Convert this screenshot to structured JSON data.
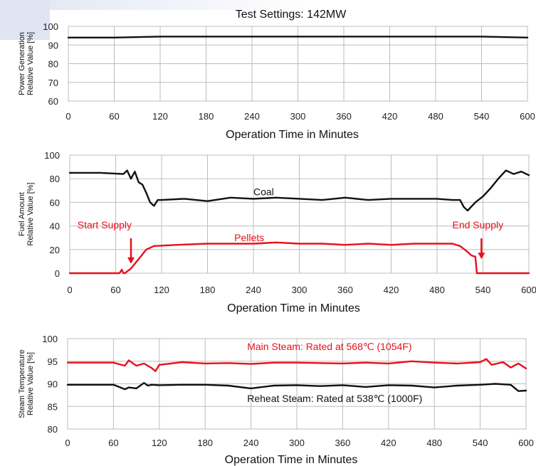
{
  "chart_data": [
    {
      "type": "line",
      "title": "Test Settings: 142MW",
      "xlabel": "Operation Time in Minutes",
      "ylabel": [
        "Power Generation",
        "Relative Value [%]"
      ],
      "xlim": [
        0,
        600
      ],
      "ylim": [
        60,
        100
      ],
      "xticks": [
        0,
        60,
        120,
        180,
        240,
        300,
        360,
        420,
        480,
        540,
        600
      ],
      "yticks": [
        60,
        70,
        80,
        90,
        100
      ],
      "grid": true,
      "series": [
        {
          "color": "#111111",
          "x": [
            0,
            60,
            120,
            180,
            240,
            300,
            360,
            420,
            480,
            540,
            600
          ],
          "y": [
            94,
            94,
            94.5,
            94.5,
            94.5,
            94.5,
            94.5,
            94.5,
            94.5,
            94.5,
            94
          ]
        }
      ],
      "annotations": []
    },
    {
      "type": "line",
      "title": "",
      "xlabel": "Operation Time in Minutes",
      "ylabel": [
        "Fuel Amount",
        "Relative Value [%]"
      ],
      "xlim": [
        0,
        600
      ],
      "ylim": [
        0,
        100
      ],
      "xticks": [
        0,
        60,
        120,
        180,
        240,
        300,
        360,
        420,
        480,
        540,
        600
      ],
      "yticks": [
        0,
        20,
        40,
        60,
        80,
        100
      ],
      "grid": true,
      "series": [
        {
          "color": "#111111",
          "x": [
            0,
            40,
            70,
            75,
            80,
            85,
            90,
            95,
            100,
            105,
            110,
            115,
            120,
            150,
            180,
            210,
            240,
            270,
            300,
            330,
            360,
            390,
            420,
            450,
            480,
            500,
            510,
            515,
            520,
            530,
            540,
            550,
            560,
            570,
            580,
            590,
            600
          ],
          "y": [
            85,
            85,
            84,
            87,
            80,
            86,
            77,
            75,
            68,
            60,
            57,
            62,
            62,
            63,
            61,
            64,
            63,
            64,
            63,
            62,
            64,
            62,
            63,
            63,
            63,
            62,
            62,
            56,
            53,
            60,
            65,
            72,
            80,
            87,
            84,
            86,
            83
          ]
        },
        {
          "color": "#e8101c",
          "x": [
            0,
            65,
            68,
            70,
            72,
            80,
            90,
            100,
            110,
            140,
            180,
            210,
            240,
            270,
            300,
            330,
            360,
            390,
            420,
            450,
            480,
            500,
            510,
            520,
            525,
            530,
            532,
            540,
            600
          ],
          "y": [
            0,
            0,
            3,
            0,
            0,
            4,
            12,
            20,
            23,
            24,
            25,
            25,
            25,
            26,
            25,
            25,
            24,
            25,
            24,
            25,
            25,
            25,
            23,
            18,
            15,
            14,
            0,
            0,
            0
          ]
        }
      ],
      "annotations": [
        {
          "text": "Coal",
          "x": 240,
          "y": 66,
          "color": "#111111"
        },
        {
          "text": "Pellets",
          "x": 215,
          "y": 27,
          "color": "#e8101c"
        },
        {
          "text": "Start Supply",
          "x": 10,
          "y": 38,
          "color": "#e8101c",
          "arrow_to": [
            80,
            8
          ]
        },
        {
          "text": "End Supply",
          "x": 500,
          "y": 38,
          "color": "#e8101c",
          "arrow_to": [
            538,
            12
          ]
        }
      ]
    },
    {
      "type": "line",
      "title": "",
      "xlabel": "Operation Time in Minutes",
      "ylabel": [
        "Steam Temperature",
        "Relative Value [%]"
      ],
      "xlim": [
        0,
        600
      ],
      "ylim": [
        80,
        100
      ],
      "xticks": [
        0,
        60,
        120,
        180,
        240,
        300,
        360,
        420,
        480,
        540,
        600
      ],
      "yticks": [
        80,
        85,
        90,
        95,
        100
      ],
      "grid": true,
      "series": [
        {
          "color": "#e8101c",
          "x": [
            0,
            60,
            75,
            80,
            90,
            100,
            110,
            115,
            120,
            150,
            180,
            210,
            240,
            270,
            300,
            330,
            360,
            390,
            420,
            450,
            480,
            510,
            540,
            548,
            555,
            570,
            580,
            590,
            600
          ],
          "y": [
            94.7,
            94.7,
            94,
            95.2,
            94,
            94.5,
            93.5,
            92.8,
            94.2,
            94.8,
            94.5,
            94.6,
            94.4,
            94.7,
            94.7,
            94.6,
            94.5,
            94.7,
            94.5,
            95,
            94.7,
            94.5,
            94.8,
            95.5,
            94.2,
            94.8,
            93.6,
            94.5,
            93.4
          ]
        },
        {
          "color": "#111111",
          "x": [
            0,
            60,
            75,
            80,
            90,
            100,
            105,
            110,
            120,
            150,
            180,
            210,
            240,
            270,
            300,
            330,
            360,
            390,
            420,
            450,
            480,
            510,
            540,
            560,
            580,
            590,
            600
          ],
          "y": [
            89.8,
            89.8,
            88.8,
            89.2,
            89,
            90.2,
            89.6,
            89.8,
            89.7,
            89.8,
            89.8,
            89.6,
            89,
            89.6,
            89.7,
            89.5,
            89.7,
            89.3,
            89.7,
            89.6,
            89.2,
            89.6,
            89.8,
            90,
            89.8,
            88.4,
            88.5
          ]
        }
      ],
      "annotations": [
        {
          "text": "Main Steam: Rated at 568℃ (1054F)",
          "x": 235,
          "y": 97.5,
          "color": "#e8101c"
        },
        {
          "text": "Reheat Steam: Rated at 538℃ (1000F)",
          "x": 235,
          "y": 86,
          "color": "#111111"
        }
      ]
    }
  ]
}
